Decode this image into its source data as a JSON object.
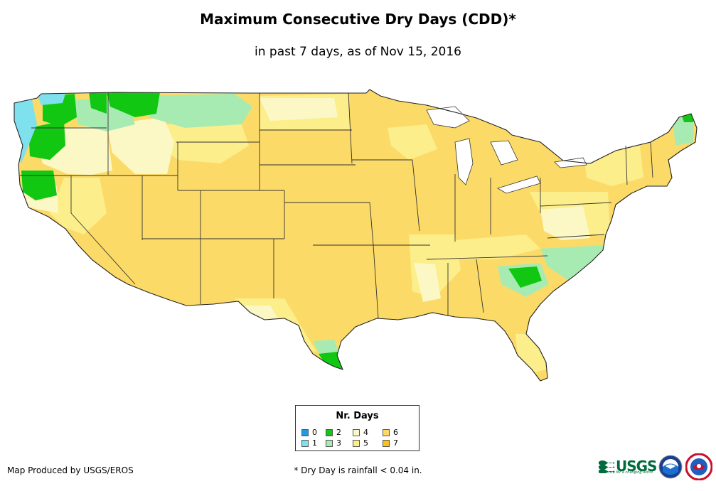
{
  "title": "Maximum Consecutive Dry Days (CDD)*",
  "subtitle": "in past 7 days, as of Nov 15, 2016",
  "legend": {
    "title": "Nr. Days",
    "items": [
      {
        "label": "0",
        "color": "#1e9be8"
      },
      {
        "label": "1",
        "color": "#7fe0ee"
      },
      {
        "label": "2",
        "color": "#11c711"
      },
      {
        "label": "3",
        "color": "#a8ebb2"
      },
      {
        "label": "4",
        "color": "#fbf8c6"
      },
      {
        "label": "5",
        "color": "#fcee8a"
      },
      {
        "label": "6",
        "color": "#fcda67"
      },
      {
        "label": "7",
        "color": "#f8c21e"
      }
    ]
  },
  "footer": {
    "credit": "Map Produced by USGS/EROS",
    "footnote": "* Dry Day is rainfall < 0.04 in."
  },
  "logos": {
    "usgs_label": "USGS",
    "usgs_tagline": "science for a changing world",
    "icons": [
      "usgs-logo-icon",
      "noaa-logo-icon",
      "nws-logo-icon"
    ]
  }
}
